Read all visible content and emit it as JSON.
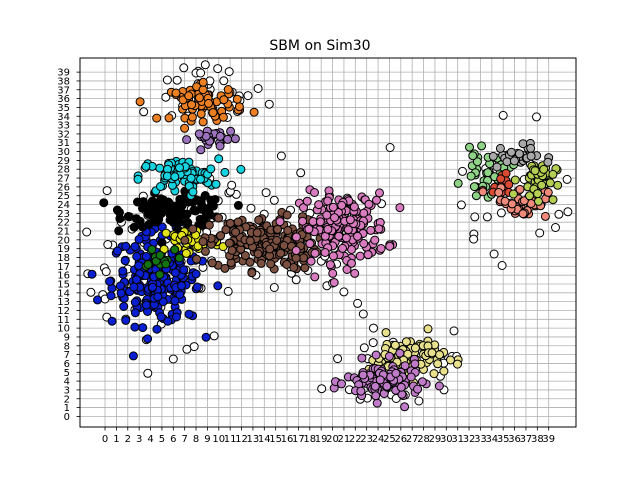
{
  "chart_data": {
    "type": "scatter",
    "title": "SBM on Sim30",
    "xlabel": "",
    "ylabel": "",
    "xlim": [
      -2.2,
      41.4
    ],
    "ylim": [
      -1.2,
      40.6
    ],
    "grid": true,
    "xticks": [
      0,
      1,
      2,
      3,
      4,
      5,
      6,
      7,
      8,
      9,
      10,
      11,
      12,
      13,
      14,
      15,
      16,
      17,
      18,
      19,
      20,
      21,
      22,
      23,
      24,
      25,
      26,
      27,
      28,
      29,
      30,
      31,
      32,
      33,
      34,
      35,
      36,
      37,
      38,
      39
    ],
    "yticks": [
      0,
      1,
      2,
      3,
      4,
      5,
      6,
      7,
      8,
      9,
      10,
      11,
      12,
      13,
      14,
      15,
      16,
      17,
      18,
      19,
      20,
      21,
      22,
      23,
      24,
      25,
      26,
      27,
      28,
      29,
      30,
      31,
      32,
      33,
      34,
      35,
      36,
      37,
      38,
      39
    ],
    "noise_color": "#ffffff",
    "clusters": [
      {
        "name": "blue",
        "color": "#0a1fd0",
        "center": [
          4.5,
          15.5
        ],
        "spread": [
          2.6,
          3.4
        ],
        "count": 230
      },
      {
        "name": "black",
        "color": "#000000",
        "center": [
          6.3,
          23.3
        ],
        "spread": [
          3.0,
          1.2
        ],
        "count": 110
      },
      {
        "name": "cyan",
        "color": "#17d3e0",
        "center": [
          6.5,
          27.2
        ],
        "spread": [
          2.3,
          1.3
        ],
        "count": 70
      },
      {
        "name": "yellow",
        "color": "#e3e31a",
        "center": [
          7.5,
          19.8
        ],
        "spread": [
          1.8,
          1.2
        ],
        "count": 40
      },
      {
        "name": "green",
        "color": "#127512",
        "center": [
          5.0,
          18.2
        ],
        "spread": [
          1.3,
          1.0
        ],
        "count": 14
      },
      {
        "name": "brown",
        "color": "#7b5040",
        "center": [
          14.0,
          19.6
        ],
        "spread": [
          3.2,
          2.0
        ],
        "count": 210
      },
      {
        "name": "pink",
        "color": "#d97bbf",
        "center": [
          21.0,
          21.3
        ],
        "spread": [
          2.5,
          2.6
        ],
        "count": 190
      },
      {
        "name": "orange",
        "color": "#ec7f22",
        "center": [
          9.0,
          35.5
        ],
        "spread": [
          2.1,
          1.3
        ],
        "count": 70
      },
      {
        "name": "purple",
        "color": "#9c72bd",
        "center": [
          9.5,
          31.5
        ],
        "spread": [
          1.3,
          0.8
        ],
        "count": 28
      },
      {
        "name": "tan",
        "color": "#e8e08c",
        "center": [
          26.5,
          6.8
        ],
        "spread": [
          2.2,
          1.6
        ],
        "count": 95
      },
      {
        "name": "violet",
        "color": "#c07bc8",
        "center": [
          24.5,
          3.9
        ],
        "spread": [
          2.2,
          1.5
        ],
        "count": 110
      },
      {
        "name": "light-green",
        "color": "#8fd387",
        "center": [
          33.6,
          27.5
        ],
        "spread": [
          1.4,
          1.6
        ],
        "count": 42
      },
      {
        "name": "red",
        "color": "#d94a32",
        "center": [
          35.0,
          26.5
        ],
        "spread": [
          0.9,
          1.0
        ],
        "count": 12
      },
      {
        "name": "salmon",
        "color": "#f08a7a",
        "center": [
          36.6,
          24.3
        ],
        "spread": [
          1.5,
          1.2
        ],
        "count": 42
      },
      {
        "name": "olive-green",
        "color": "#b5cf52",
        "center": [
          38.0,
          26.8
        ],
        "spread": [
          1.1,
          1.4
        ],
        "count": 42
      },
      {
        "name": "gray",
        "color": "#a9a9a9",
        "center": [
          36.0,
          29.5
        ],
        "spread": [
          1.4,
          0.9
        ],
        "count": 28
      }
    ],
    "noise_regions": [
      {
        "center": [
          5.0,
          18.0
        ],
        "spread": [
          4.0,
          5.0
        ],
        "count": 60
      },
      {
        "center": [
          8.5,
          36.5
        ],
        "spread": [
          2.8,
          2.0
        ],
        "count": 28
      },
      {
        "center": [
          14.5,
          20.0
        ],
        "spread": [
          4.5,
          3.2
        ],
        "count": 50
      },
      {
        "center": [
          26.0,
          5.5
        ],
        "spread": [
          3.2,
          2.8
        ],
        "count": 32
      },
      {
        "center": [
          35.5,
          27.0
        ],
        "spread": [
          3.0,
          3.0
        ],
        "count": 28
      }
    ],
    "noise_points": [
      [
        -0.2,
        13.8
      ],
      [
        0.0,
        13.3
      ],
      [
        0.1,
        16.4
      ],
      [
        8.0,
        38.9
      ],
      [
        8.4,
        38.9
      ],
      [
        9.9,
        39.4
      ],
      [
        17.2,
        27.6
      ],
      [
        19.5,
        14.8
      ],
      [
        20.0,
        15.1
      ],
      [
        21.0,
        14.1
      ],
      [
        22.2,
        12.8
      ],
      [
        22.7,
        11.6
      ],
      [
        23.6,
        10.0
      ],
      [
        30.5,
        6.8
      ],
      [
        30.9,
        6.8
      ],
      [
        29.8,
        3.0
      ],
      [
        34.2,
        18.4
      ],
      [
        34.9,
        17.1
      ],
      [
        35.0,
        34.1
      ],
      [
        33.6,
        22.6
      ],
      [
        32.5,
        22.6
      ],
      [
        39.9,
        22.9
      ],
      [
        39.6,
        21.4
      ],
      [
        6.0,
        6.5
      ],
      [
        7.2,
        7.6
      ],
      [
        15.5,
        29.5
      ],
      [
        3.4,
        34.5
      ],
      [
        24.3,
        24.1
      ]
    ]
  }
}
